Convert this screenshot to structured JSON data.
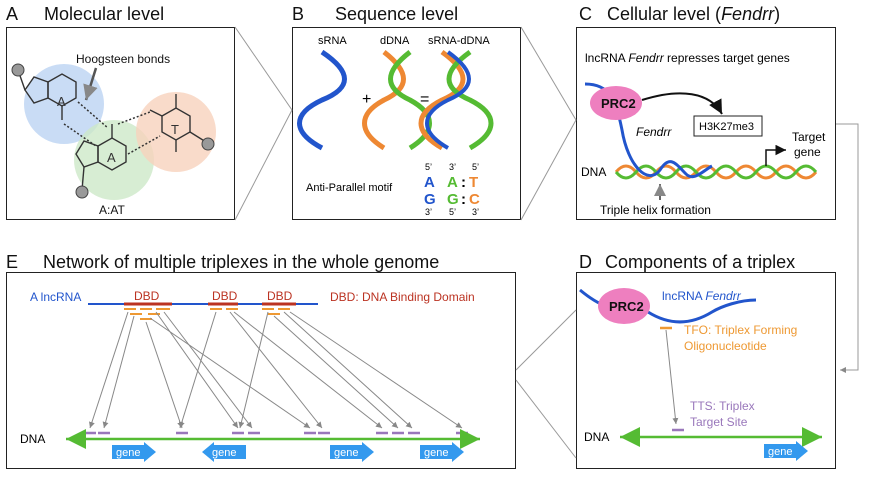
{
  "panels": {
    "a": {
      "letter": "A",
      "title": "Molecular level",
      "hoogsteen": "Hoogsteen bonds",
      "base_a1": "A",
      "base_a2": "A",
      "base_t": "T",
      "caption": "A:AT"
    },
    "b": {
      "letter": "B",
      "title": "Sequence level",
      "srna": "sRNA",
      "ddna": "dDNA",
      "srna_ddna": "sRNA-dDNA",
      "plus": "+",
      "equals": "=",
      "motif_label": "Anti-Parallel motif",
      "motif": {
        "p5_a": "5’",
        "p3_a": "3’",
        "p3_b": "3’",
        "p5_b": "5’",
        "p5_c": "5’",
        "p3_c": "3’",
        "r1_a": "A",
        "r1_b": "A",
        "r1_colon": ":",
        "r1_c": "T",
        "r2_a": "G",
        "r2_b": "G",
        "r2_colon": ":",
        "r2_c": "C"
      }
    },
    "c": {
      "letter": "C",
      "title_prefix": "Cellular level (",
      "title_italic": "Fendrr",
      "title_suffix": ")",
      "subtitle_prefix": "lncRNA ",
      "subtitle_italic": "Fendrr",
      "subtitle_suffix": " represses target genes",
      "prc2": "PRC2",
      "h3k27me3": "H3K27me3",
      "target_gene_1": "Target",
      "target_gene_2": "gene",
      "fendrr": "Fendrr",
      "dna": "DNA",
      "triple_helix": "Triple helix formation"
    },
    "d": {
      "letter": "D",
      "title": "Components of a triplex",
      "prc2": "PRC2",
      "lncrna_prefix": "lncRNA ",
      "lncrna_italic": "Fendrr",
      "tfo_1": "TFO: Triplex Forming",
      "tfo_2": "Oligonucleotide",
      "tts_1": "TTS: Triplex",
      "tts_2": "Target Site",
      "dna": "DNA",
      "gene": "gene"
    },
    "e": {
      "letter": "E",
      "title": "Network of multiple triplexes in the whole genome",
      "lncrna": "A lncRNA",
      "dbd_1": "DBD",
      "dbd_2": "DBD",
      "dbd_3": "DBD",
      "dbd_legend": "DBD: DNA Binding Domain",
      "dna": "DNA",
      "genes": [
        "gene",
        "gene",
        "gene",
        "gene"
      ]
    }
  },
  "colors": {
    "rna_blue": "#2255cc",
    "dna_green": "#55bb33",
    "dna_orange": "#ee8833",
    "prc2_pink": "#ee7fbf",
    "dbd_red": "#bb3322",
    "tfo_orange": "#ee9933",
    "tts_purple": "#9977bb",
    "gene_blue": "#3399ee",
    "line_gray": "#888888"
  }
}
